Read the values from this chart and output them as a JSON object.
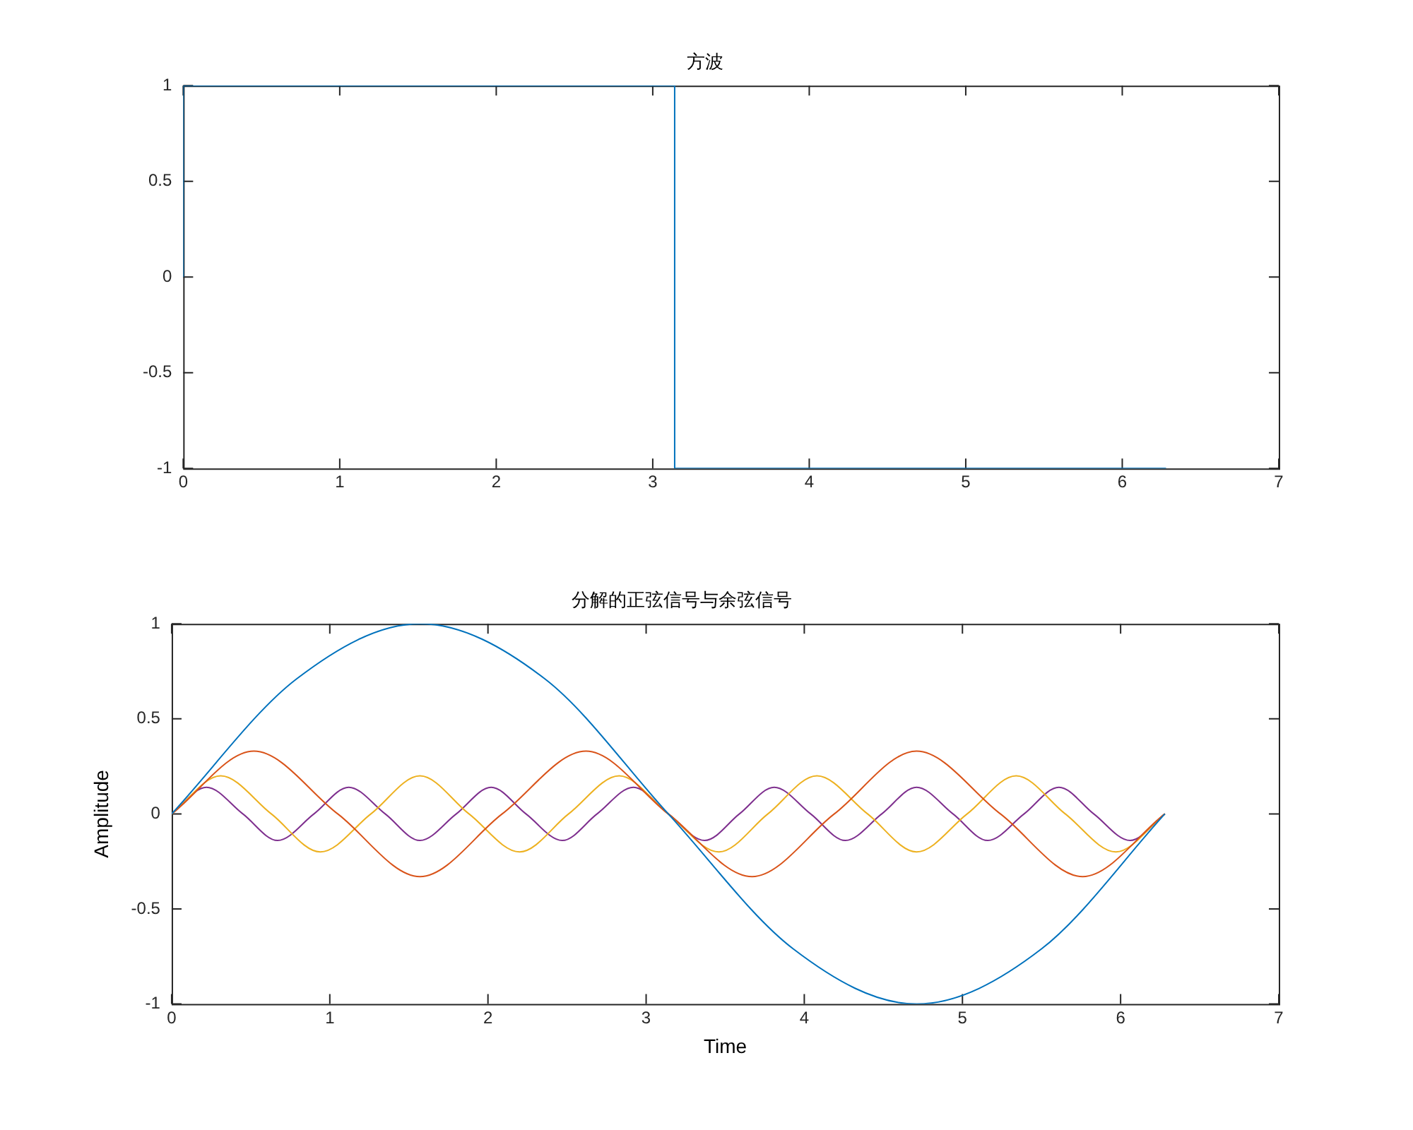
{
  "chart_data": [
    {
      "type": "line",
      "title": "方波",
      "xlim": [
        0,
        7
      ],
      "xticks": [
        0,
        1,
        2,
        3,
        4,
        5,
        6,
        7
      ],
      "ylim": [
        -1,
        1
      ],
      "yticks": [
        -1,
        -0.5,
        0,
        0.5,
        1
      ],
      "series": [
        {
          "color": "#0072bd",
          "x": [
            0,
            0,
            3.14,
            3.14,
            6.28
          ],
          "values": [
            0,
            1,
            1,
            -1,
            -1
          ]
        }
      ]
    },
    {
      "type": "line",
      "title": "分解的正弦信号与余弦信号",
      "xlabel": "Time",
      "ylabel": "Amplitude",
      "xlim": [
        0,
        7
      ],
      "xticks": [
        0,
        1,
        2,
        3,
        4,
        5,
        6,
        7
      ],
      "ylim": [
        -1,
        1
      ],
      "yticks": [
        -1,
        -0.5,
        0,
        0.5,
        1
      ],
      "series": [
        {
          "color": "#0072bd",
          "x": [
            0,
            0.79,
            1.57,
            2.36,
            3.14,
            3.93,
            4.71,
            5.5,
            6.28
          ],
          "values": [
            0,
            0.71,
            1,
            0.71,
            0,
            -0.71,
            -1,
            -0.71,
            0
          ]
        },
        {
          "color": "#d95319",
          "x": [
            0,
            0.52,
            1.05,
            1.57,
            2.09,
            2.62,
            3.14,
            3.67,
            4.19,
            4.71,
            5.24,
            5.76,
            6.28
          ],
          "values": [
            0,
            0.33,
            0,
            -0.33,
            0,
            0.33,
            0,
            -0.33,
            0,
            0.33,
            0,
            -0.33,
            0
          ]
        },
        {
          "color": "#edb120",
          "x": [
            0,
            0.31,
            0.63,
            0.94,
            1.26,
            1.57,
            1.88,
            2.2,
            2.51,
            2.83,
            3.14,
            3.46,
            3.77,
            4.08,
            4.4,
            4.71,
            5.03,
            5.34,
            5.65,
            5.97,
            6.28
          ],
          "values": [
            0,
            0.2,
            0,
            -0.2,
            0,
            0.2,
            0,
            -0.2,
            0,
            0.2,
            0,
            -0.2,
            0,
            0.2,
            0,
            -0.2,
            0,
            0.2,
            0,
            -0.2,
            0
          ]
        },
        {
          "color": "#7e2f8e",
          "x": [
            0,
            0.22,
            0.45,
            0.67,
            0.9,
            1.12,
            1.35,
            1.57,
            1.8,
            2.02,
            2.24,
            2.47,
            2.69,
            2.92,
            3.14,
            3.37,
            3.59,
            3.81,
            4.04,
            4.26,
            4.49,
            4.71,
            4.94,
            5.16,
            5.39,
            5.61,
            5.83,
            6.06,
            6.28
          ],
          "values": [
            0,
            0.14,
            0,
            -0.14,
            0,
            0.14,
            0,
            -0.14,
            0,
            0.14,
            0,
            -0.14,
            0,
            0.14,
            0,
            -0.14,
            0,
            0.14,
            0,
            -0.14,
            0,
            0.14,
            0,
            -0.14,
            0,
            0.14,
            0,
            -0.14,
            0
          ]
        }
      ]
    }
  ]
}
